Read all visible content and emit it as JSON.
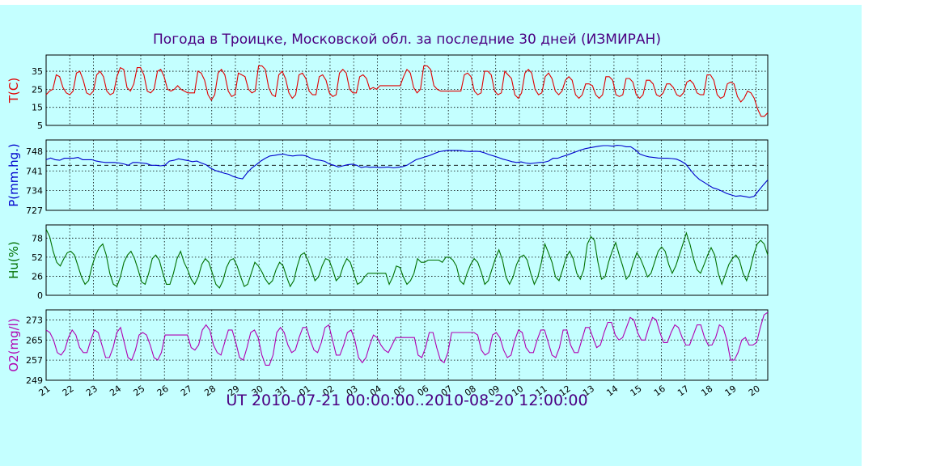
{
  "chart_data": {
    "type": "line",
    "title": "Погода в Троицке, Московской обл.  за последние 30 дней (ИЗМИРАН)",
    "xlabel": "UT 2010-07-21 00:00:00..2010-08-20 12:00:00",
    "x_ticks": [
      "21",
      "22",
      "23",
      "24",
      "25",
      "26",
      "27",
      "28",
      "29",
      "30",
      "31",
      "01",
      "02",
      "03",
      "04",
      "05",
      "06",
      "07",
      "08",
      "09",
      "10",
      "11",
      "12",
      "13",
      "14",
      "15",
      "16",
      "17",
      "18",
      "19",
      "20"
    ],
    "grid": true,
    "panels": [
      {
        "name": "temperature",
        "ylabel": "T(C)",
        "color": "#e00000",
        "ylim": [
          5,
          44
        ],
        "yticks": [
          5,
          15,
          25,
          35
        ],
        "reference": null,
        "series": [
          {
            "values": [
              22,
              24,
              25,
              33,
              32,
              26,
              23,
              22,
              24,
              34,
              35,
              30,
              23,
              22,
              24,
              33,
              35,
              32,
              24,
              22,
              23,
              32,
              37,
              36,
              26,
              24,
              28,
              37,
              37,
              33,
              24,
              23,
              25,
              35,
              36,
              32,
              25,
              24,
              25,
              27,
              25,
              24,
              23,
              23,
              23,
              35,
              34,
              30,
              22,
              19,
              22,
              34,
              36,
              33,
              24,
              21,
              22,
              34,
              33,
              32,
              25,
              23,
              24,
              38,
              38,
              36,
              26,
              22,
              21,
              33,
              35,
              31,
              23,
              20,
              22,
              33,
              34,
              31,
              24,
              22,
              22,
              32,
              33,
              30,
              23,
              21,
              22,
              34,
              36,
              34,
              25,
              23,
              23,
              32,
              33,
              31,
              25,
              26,
              25,
              27,
              27,
              27,
              27,
              27,
              27,
              27,
              32,
              36,
              34,
              26,
              23,
              25,
              38,
              38,
              36,
              27,
              25,
              24,
              24,
              24,
              24,
              24,
              24,
              24,
              33,
              34,
              32,
              24,
              22,
              23,
              35,
              35,
              33,
              24,
              22,
              23,
              35,
              33,
              31,
              22,
              20,
              23,
              34,
              36,
              34,
              25,
              22,
              23,
              32,
              34,
              31,
              24,
              22,
              24,
              30,
              32,
              30,
              22,
              20,
              22,
              28,
              28,
              27,
              22,
              20,
              22,
              32,
              32,
              30,
              22,
              21,
              22,
              31,
              31,
              29,
              22,
              20,
              22,
              30,
              30,
              28,
              22,
              21,
              23,
              28,
              28,
              26,
              22,
              21,
              23,
              29,
              30,
              28,
              23,
              22,
              22,
              33,
              33,
              30,
              22,
              20,
              21,
              28,
              29,
              28,
              21,
              18,
              20,
              24,
              23,
              20,
              14,
              10,
              10,
              12
            ]
          }
        ]
      },
      {
        "name": "pressure",
        "ylabel": "P(mm.hg.)",
        "color": "#0000cc",
        "ylim": [
          727,
          752
        ],
        "yticks": [
          727,
          734,
          741,
          748
        ],
        "reference": 743,
        "series": [
          {
            "values": [
              745,
              745.6,
              745,
              744.8,
              745.5,
              745.5,
              745.5,
              745.8,
              745,
              745,
              745,
              744.5,
              744.2,
              744,
              744,
              744,
              743.8,
              743.5,
              743,
              744,
              744,
              743.8,
              743.6,
              743,
              743,
              742.8,
              743,
              744.5,
              744.8,
              745.3,
              745,
              744.7,
              744.3,
              744.5,
              743.8,
              743.2,
              742,
              741.2,
              740.7,
              740.2,
              739.8,
              739,
              738.5,
              738.2,
              740.3,
              742,
              743.2,
              744.5,
              745.5,
              746.3,
              746.5,
              746.8,
              747,
              746.5,
              746.3,
              746.5,
              746.6,
              746.3,
              745.5,
              745,
              744.8,
              744.4,
              743.5,
              743,
              742.4,
              742.8,
              743.2,
              743.4,
              743,
              742.2,
              742.5,
              742.3,
              742.4,
              742.2,
              742.3,
              742.4,
              742.1,
              742.3,
              742.5,
              743,
              744,
              745,
              745.5,
              746,
              746.5,
              747.2,
              747.8,
              748.1,
              748.3,
              748.3,
              748.3,
              748.2,
              748,
              747.9,
              748,
              747.9,
              747.4,
              746.8,
              746.3,
              745.8,
              745.2,
              744.8,
              744.3,
              744,
              744.2,
              743.8,
              743.6,
              743.8,
              744,
              744.1,
              744.5,
              745.5,
              745.5,
              746.1,
              746.6,
              747.2,
              747.8,
              748.4,
              748.9,
              749.2,
              749.5,
              749.8,
              750,
              750,
              749.8,
              750.1,
              750,
              749.6,
              749.6,
              748.5,
              747,
              746.4,
              746,
              745.8,
              745.6,
              745.5,
              745.5,
              745.4,
              745.2,
              744.5,
              743.5,
              741.5,
              739.5,
              738,
              737,
              736,
              735,
              734.5,
              733.8,
              733,
              732.5,
              732,
              732.2,
              731.9,
              731.6,
              732,
              734,
              736,
              737.8
            ]
          }
        ]
      },
      {
        "name": "humidity",
        "ylabel": "Hu(%)",
        "color": "#007000",
        "ylim": [
          0,
          96
        ],
        "yticks": [
          0,
          26,
          52,
          78
        ],
        "reference": null,
        "series": [
          {
            "values": [
              90,
              80,
              60,
              45,
              40,
              50,
              58,
              60,
              55,
              40,
              25,
              15,
              20,
              40,
              55,
              65,
              70,
              55,
              30,
              15,
              12,
              25,
              45,
              55,
              60,
              50,
              35,
              18,
              15,
              30,
              50,
              55,
              48,
              30,
              15,
              15,
              30,
              50,
              60,
              45,
              35,
              22,
              15,
              25,
              42,
              50,
              45,
              30,
              15,
              10,
              20,
              38,
              48,
              50,
              40,
              25,
              12,
              15,
              30,
              45,
              40,
              32,
              22,
              15,
              20,
              35,
              45,
              40,
              25,
              12,
              20,
              40,
              55,
              58,
              48,
              35,
              20,
              25,
              40,
              50,
              48,
              35,
              20,
              25,
              40,
              50,
              45,
              30,
              15,
              18,
              25,
              30,
              30,
              30,
              30,
              30,
              30,
              15,
              25,
              40,
              38,
              25,
              15,
              20,
              30,
              50,
              45,
              45,
              48,
              48,
              48,
              48,
              45,
              52,
              52,
              48,
              40,
              20,
              15,
              30,
              42,
              50,
              45,
              32,
              15,
              20,
              35,
              50,
              62,
              48,
              25,
              15,
              25,
              42,
              52,
              55,
              48,
              30,
              15,
              25,
              45,
              70,
              58,
              45,
              25,
              20,
              35,
              52,
              60,
              50,
              30,
              22,
              35,
              70,
              80,
              75,
              45,
              22,
              25,
              45,
              60,
              72,
              55,
              40,
              22,
              28,
              45,
              58,
              50,
              38,
              25,
              30,
              45,
              60,
              66,
              60,
              42,
              30,
              40,
              55,
              70,
              85,
              70,
              50,
              35,
              30,
              42,
              55,
              65,
              55,
              30,
              15,
              28,
              42,
              50,
              55,
              48,
              30,
              20,
              35,
              55,
              70,
              75,
              70,
              55
            ]
          }
        ]
      },
      {
        "name": "oxygen",
        "ylabel": "O2(mg/l)",
        "color": "#b000b0",
        "ylim": [
          249,
          277
        ],
        "yticks": [
          249,
          257,
          265,
          273
        ],
        "reference": null,
        "series": [
          {
            "values": [
              269,
              268,
              265,
              260,
              259,
              261,
              266,
              269,
              267,
              262,
              260,
              260,
              265,
              269,
              268,
              263,
              258,
              258,
              262,
              268,
              270,
              264,
              258,
              257,
              261,
              267,
              268,
              267,
              263,
              258,
              257,
              260,
              267,
              267,
              267,
              267,
              267,
              267,
              267,
              262,
              261,
              263,
              269,
              271,
              269,
              263,
              260,
              259,
              264,
              269,
              269,
              264,
              258,
              257,
              262,
              268,
              269,
              266,
              259,
              255,
              255,
              259,
              268,
              270,
              268,
              263,
              260,
              261,
              266,
              270,
              270,
              265,
              261,
              260,
              264,
              270,
              271,
              265,
              259,
              259,
              263,
              268,
              269,
              265,
              258,
              256,
              258,
              263,
              267,
              266,
              263,
              261,
              260,
              263,
              266,
              266,
              266,
              266,
              266,
              266,
              259,
              258,
              262,
              268,
              268,
              262,
              257,
              256,
              260,
              268,
              268,
              268,
              268,
              268,
              268,
              268,
              267,
              261,
              259,
              260,
              267,
              268,
              266,
              261,
              258,
              259,
              265,
              269,
              268,
              262,
              260,
              260,
              265,
              269,
              269,
              264,
              259,
              258,
              262,
              269,
              269,
              263,
              260,
              260,
              265,
              270,
              270,
              266,
              262,
              263,
              268,
              272,
              272,
              267,
              265,
              266,
              270,
              274,
              273,
              268,
              265,
              265,
              270,
              274,
              273,
              268,
              264,
              264,
              268,
              271,
              270,
              266,
              263,
              263,
              267,
              271,
              271,
              266,
              263,
              263,
              266,
              271,
              270,
              265,
              257,
              257,
              260,
              265,
              266,
              263,
              263,
              264,
              270,
              275,
              276
            ]
          }
        ]
      }
    ]
  }
}
